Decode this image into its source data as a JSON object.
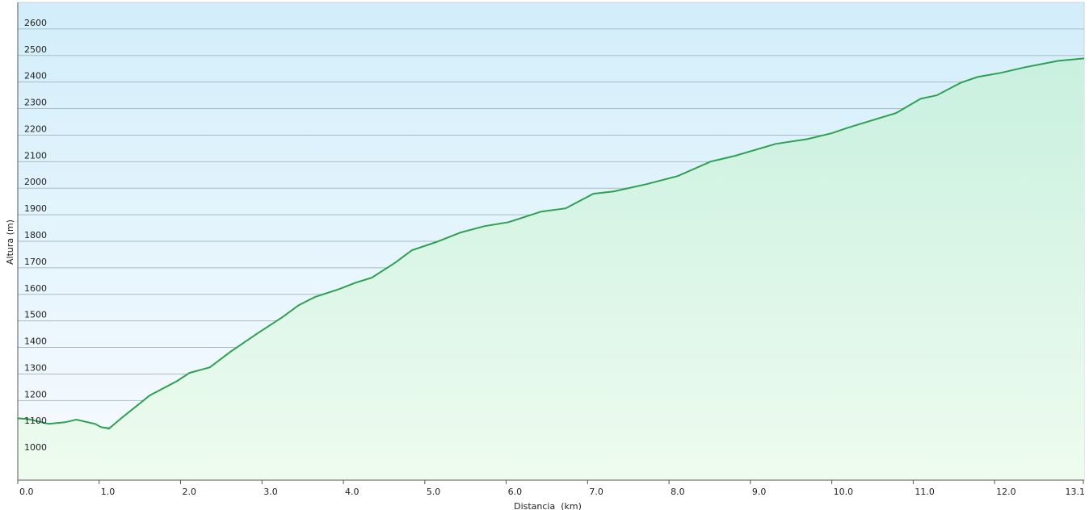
{
  "chart_data": {
    "type": "area",
    "title": "",
    "xlabel": "Distancia  (km)",
    "ylabel": "Altura (m)",
    "xlim": [
      0,
      13.1
    ],
    "ylim": [
      900,
      2700
    ],
    "grid": true,
    "x_ticks": [
      0,
      1,
      2,
      3,
      4,
      5,
      6,
      7,
      8,
      9,
      10,
      11,
      12,
      13.1
    ],
    "x_tick_labels": [
      "0.0",
      "1.0",
      "2.0",
      "3.0",
      "4.0",
      "5.0",
      "6.0",
      "7.0",
      "8.0",
      "9.0",
      "10.0",
      "11.0",
      "12.0",
      "13.1"
    ],
    "y_ticks": [
      1000,
      1100,
      1200,
      1300,
      1400,
      1500,
      1600,
      1700,
      1800,
      1900,
      2000,
      2100,
      2200,
      2300,
      2400,
      2500,
      2600
    ],
    "y_tick_labels": [
      "1000",
      "1100",
      "1200",
      "1300",
      "1400",
      "1500",
      "1600",
      "1700",
      "1800",
      "1900",
      "2000",
      "2100",
      "2200",
      "2300",
      "2400",
      "2500",
      "2600"
    ],
    "colors": {
      "line": "#2ea050",
      "fill_top": "#c9f0e0",
      "fill_bottom": "#eefcef",
      "bg_top": "#d2eefa",
      "bg_bottom": "#f8fbff",
      "grid": "#a9bcc6"
    },
    "series": [
      {
        "x": [
          0,
          0.13,
          0.38,
          0.58,
          0.72,
          0.95,
          1.02,
          1.12,
          1.27,
          1.47,
          1.62,
          1.96,
          2.11,
          2.36,
          2.61,
          2.96,
          3.25,
          3.45,
          3.65,
          3.95,
          4.15,
          4.35,
          4.64,
          4.84,
          5.14,
          5.44,
          5.73,
          6.03,
          6.43,
          6.73,
          7.07,
          7.32,
          7.72,
          8.11,
          8.51,
          8.81,
          9.31,
          9.7,
          10.0,
          10.2,
          10.79,
          11.09,
          11.29,
          11.59,
          11.79,
          12.08,
          12.38,
          12.78,
          13.1
        ],
        "y": [
          1133,
          1130,
          1112,
          1118,
          1128,
          1112,
          1100,
          1094,
          1133,
          1182,
          1219,
          1274,
          1304,
          1325,
          1383,
          1456,
          1514,
          1559,
          1590,
          1620,
          1644,
          1663,
          1720,
          1766,
          1797,
          1833,
          1857,
          1872,
          1912,
          1924,
          1979,
          1988,
          2015,
          2046,
          2100,
          2122,
          2167,
          2185,
          2207,
          2228,
          2283,
          2337,
          2350,
          2398,
          2419,
          2435,
          2456,
          2480,
          2489
        ]
      }
    ]
  }
}
